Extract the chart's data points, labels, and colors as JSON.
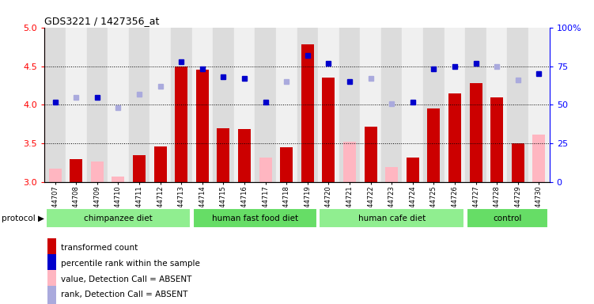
{
  "title": "GDS3221 / 1427356_at",
  "samples": [
    "GSM144707",
    "GSM144708",
    "GSM144709",
    "GSM144710",
    "GSM144711",
    "GSM144712",
    "GSM144713",
    "GSM144714",
    "GSM144715",
    "GSM144716",
    "GSM144717",
    "GSM144718",
    "GSM144719",
    "GSM144720",
    "GSM144721",
    "GSM144722",
    "GSM144723",
    "GSM144724",
    "GSM144725",
    "GSM144726",
    "GSM144727",
    "GSM144728",
    "GSM144729",
    "GSM144730"
  ],
  "group_labels": [
    "chimpanzee diet",
    "human fast food diet",
    "human cafe diet",
    "control"
  ],
  "group_colors": [
    "#90EE90",
    "#66DD66",
    "#90EE90",
    "#66DD66"
  ],
  "group_ranges": [
    [
      0,
      7
    ],
    [
      7,
      13
    ],
    [
      13,
      20
    ],
    [
      20,
      24
    ]
  ],
  "tc_values": [
    3.18,
    3.3,
    3.27,
    3.08,
    3.35,
    3.46,
    4.5,
    4.45,
    3.7,
    3.69,
    3.32,
    3.45,
    4.78,
    4.35,
    3.52,
    3.72,
    3.2,
    3.32,
    3.95,
    4.15,
    4.28,
    4.1,
    3.5,
    3.62
  ],
  "pr_values": [
    52,
    55,
    55,
    48,
    57,
    62,
    78,
    73,
    68,
    67,
    52,
    65,
    82,
    77,
    65,
    67,
    51,
    52,
    73,
    75,
    77,
    75,
    66,
    70
  ],
  "absent_value": [
    true,
    false,
    true,
    true,
    false,
    false,
    false,
    false,
    false,
    false,
    true,
    false,
    false,
    false,
    true,
    false,
    true,
    false,
    false,
    false,
    false,
    false,
    false,
    true
  ],
  "absent_rank": [
    false,
    true,
    false,
    true,
    true,
    true,
    false,
    false,
    false,
    false,
    false,
    true,
    false,
    false,
    false,
    true,
    true,
    false,
    false,
    false,
    false,
    true,
    true,
    false
  ],
  "ylim_left": [
    3.0,
    5.0
  ],
  "ylim_right": [
    0,
    100
  ],
  "yticks_left": [
    3.0,
    3.5,
    4.0,
    4.5,
    5.0
  ],
  "yticks_right": [
    0,
    25,
    50,
    75,
    100
  ],
  "ytick_labels_right": [
    "0",
    "25",
    "50",
    "75",
    "100%"
  ],
  "bar_color_present": "#CC0000",
  "bar_color_absent": "#FFB6C1",
  "dot_color_present": "#0000CC",
  "dot_color_absent": "#AAAADD",
  "grid_lines": [
    3.5,
    4.0,
    4.5
  ],
  "legend_labels": [
    "transformed count",
    "percentile rank within the sample",
    "value, Detection Call = ABSENT",
    "rank, Detection Call = ABSENT"
  ],
  "legend_colors": [
    "#CC0000",
    "#0000CC",
    "#FFB6C1",
    "#AAAADD"
  ]
}
